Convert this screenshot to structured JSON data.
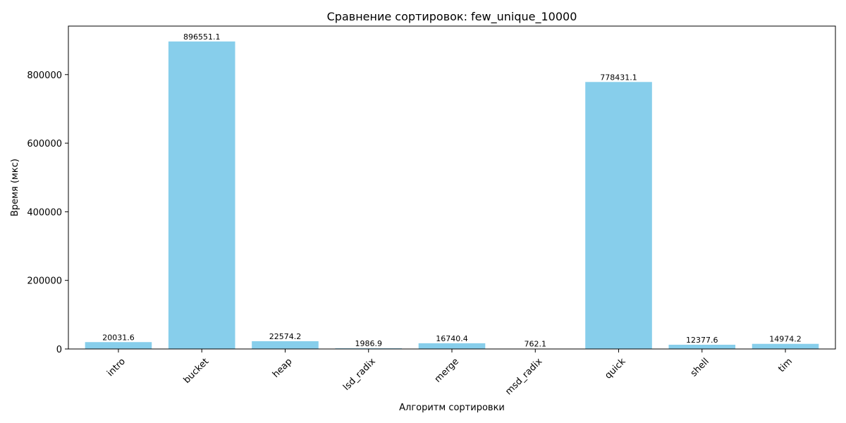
{
  "chart_data": {
    "type": "bar",
    "title": "Сравнение сортировок: few_unique_10000",
    "xlabel": "Алгоритм сортировки",
    "ylabel": "Время (мкс)",
    "categories": [
      "intro",
      "bucket",
      "heap",
      "lsd_radix",
      "merge",
      "msd_radix",
      "quick",
      "shell",
      "tim"
    ],
    "values": [
      20031.6,
      896551.1,
      22574.2,
      1986.9,
      16740.4,
      762.1,
      778431.1,
      12377.6,
      14974.2
    ],
    "value_labels": [
      "20031.6",
      "896551.1",
      "22574.2",
      "1986.9",
      "16740.4",
      "762.1",
      "778431.1",
      "12377.6",
      "14974.2"
    ],
    "ylim": [
      0,
      941378.7
    ],
    "yticks": [
      0,
      200000,
      400000,
      600000,
      800000
    ],
    "ytick_labels": [
      "0",
      "200000",
      "400000",
      "600000",
      "800000"
    ],
    "bar_color": "#87CEEB",
    "grid": false,
    "legend": "none"
  }
}
